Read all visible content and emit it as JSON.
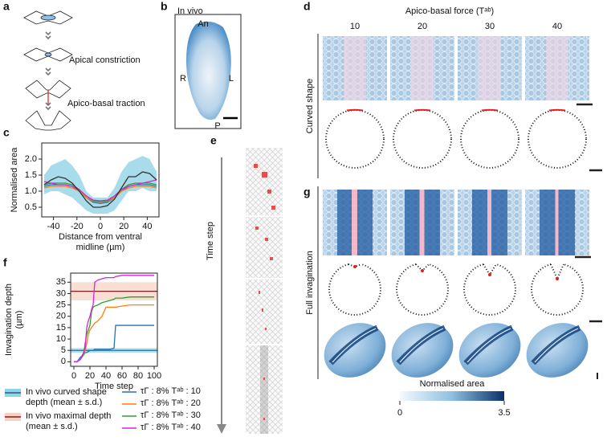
{
  "panels": {
    "a": {
      "label": "a",
      "steps": [
        "Apical constriction",
        "Apico-basal traction"
      ]
    },
    "b": {
      "label": "b",
      "title": "In vivo",
      "axes": [
        "An",
        "R",
        "L",
        "P"
      ]
    },
    "d": {
      "label": "d",
      "title": "Apico-basal force (Tᵃᵇ)",
      "columns": [
        "10",
        "20",
        "30",
        "40"
      ],
      "row_label": "Curved shape"
    },
    "e": {
      "label": "e",
      "axis_label": "Time step"
    },
    "g": {
      "label": "g",
      "row_label": "Full invagination",
      "colorbar": {
        "label": "Normalised area",
        "min": "0",
        "max": "3.5"
      }
    }
  },
  "chart_data": [
    {
      "type": "line",
      "label": "c",
      "ylabel": "Normalised area",
      "xlabel": "Distance from ventral midline (µm)",
      "x": [
        -48,
        -42,
        -36,
        -30,
        -24,
        -18,
        -12,
        -6,
        0,
        6,
        12,
        18,
        24,
        30,
        36,
        42,
        48
      ],
      "band_color": "#a9dcea",
      "band_lower": [
        0.9,
        1.0,
        1.0,
        0.9,
        0.8,
        0.6,
        0.4,
        0.3,
        0.3,
        0.3,
        0.4,
        0.7,
        1.0,
        1.0,
        1.1,
        1.0,
        1.0
      ],
      "band_upper": [
        1.5,
        1.8,
        1.9,
        2.0,
        1.8,
        1.5,
        1.0,
        0.8,
        0.8,
        0.8,
        1.1,
        1.6,
        1.9,
        2.0,
        2.1,
        2.0,
        1.6
      ],
      "series": [
        {
          "color": "#1f77b4",
          "values": [
            1.15,
            1.2,
            1.2,
            1.2,
            1.15,
            1.0,
            0.8,
            0.65,
            0.62,
            0.65,
            0.8,
            1.0,
            1.15,
            1.2,
            1.2,
            1.2,
            1.15
          ]
        },
        {
          "color": "#ff7f0e",
          "values": [
            1.1,
            1.15,
            1.15,
            1.15,
            1.1,
            1.0,
            0.8,
            0.68,
            0.65,
            0.68,
            0.8,
            1.0,
            1.1,
            1.15,
            1.15,
            1.15,
            1.1
          ]
        },
        {
          "color": "#2ca02c",
          "values": [
            1.2,
            1.25,
            1.25,
            1.25,
            1.2,
            1.05,
            0.85,
            0.7,
            0.68,
            0.7,
            0.85,
            1.05,
            1.2,
            1.25,
            1.25,
            1.25,
            1.2
          ]
        },
        {
          "color": "#e020e0",
          "values": [
            1.3,
            1.25,
            1.2,
            1.2,
            1.15,
            1.05,
            0.85,
            0.72,
            0.7,
            0.72,
            0.85,
            1.05,
            1.15,
            1.2,
            1.25,
            1.3,
            1.35
          ]
        },
        {
          "color": "#333333",
          "values": [
            1.2,
            1.35,
            1.45,
            1.4,
            1.25,
            1.0,
            0.7,
            0.5,
            0.5,
            0.55,
            0.75,
            1.1,
            1.45,
            1.45,
            1.6,
            1.55,
            1.35
          ]
        }
      ],
      "xlim": [
        -50,
        50
      ],
      "ylim": [
        0.2,
        2.5
      ],
      "xticks": [
        -40,
        -20,
        0,
        20,
        40
      ],
      "yticks": [
        0.5,
        {
          "value": 1,
          "label": "1.0"
        },
        1.5,
        {
          "value": 2,
          "label": "2.0"
        }
      ]
    },
    {
      "type": "line",
      "label": "f",
      "ylabel": "Invagination depth (µm)",
      "xlabel": "Time step",
      "x": [
        0,
        4,
        8,
        12,
        14,
        16,
        18,
        20,
        22,
        24,
        26,
        30,
        35,
        40,
        45,
        50,
        52,
        60,
        70,
        80,
        90,
        100
      ],
      "bands": [
        {
          "name": "In vivo curved shape depth (mean ± s.d.)",
          "mean": 5,
          "sd": 1,
          "color": "#8fd3e8",
          "line_color": "#1f5f80"
        },
        {
          "name": "In vivo maximal depth (mean ± s.d.)",
          "mean": 31,
          "sd": 4,
          "color": "#f6d0c2",
          "line_color": "#7a2020"
        }
      ],
      "series": [
        {
          "name": "τΓ : 8% Tᵃᵇ : 10",
          "color": "#1f77b4",
          "values": [
            0,
            0,
            2,
            3,
            4,
            4,
            4.5,
            5,
            5,
            5,
            5.5,
            5.5,
            5.5,
            5.5,
            5.5,
            6,
            16,
            16,
            16,
            16,
            16,
            16
          ]
        },
        {
          "name": "τΓ : 8% Tᵃᵇ : 20",
          "color": "#ff7f0e",
          "values": [
            0,
            0,
            1,
            3,
            5,
            8,
            12,
            14,
            15,
            16,
            17,
            18,
            20,
            24,
            24,
            24,
            24,
            24.5,
            25,
            25,
            25,
            25
          ]
        },
        {
          "name": "τΓ : 8% Tᵃᵇ : 30",
          "color": "#2ca02c",
          "values": [
            0,
            0,
            1,
            3,
            8,
            12,
            14,
            16,
            22,
            24,
            24.5,
            25,
            26,
            26.5,
            27,
            27.5,
            28,
            28,
            28.5,
            28.5,
            28.5,
            28.5
          ]
        },
        {
          "name": "τΓ : 8% Tᵃᵇ : 40",
          "color": "#e020e0",
          "values": [
            0,
            0,
            1,
            4,
            6,
            15,
            18,
            20,
            23,
            25,
            35,
            36,
            36.5,
            37,
            37,
            37,
            37.5,
            38,
            38,
            38,
            38,
            38
          ]
        }
      ],
      "xlim": [
        -4,
        104
      ],
      "ylim": [
        -2,
        39
      ],
      "xticks": [
        0,
        20,
        40,
        60,
        80,
        100
      ],
      "yticks": [
        0,
        5,
        10,
        15,
        20,
        25,
        30,
        35
      ]
    }
  ]
}
